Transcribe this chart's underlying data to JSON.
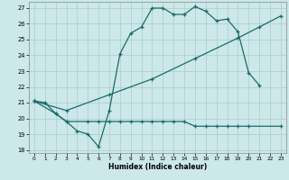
{
  "title": "",
  "xlabel": "Humidex (Indice chaleur)",
  "bg_color": "#cce8e8",
  "grid_color": "#aacccc",
  "line_color": "#1a6b6b",
  "xlim": [
    -0.5,
    23.5
  ],
  "ylim": [
    17.8,
    27.4
  ],
  "yticks": [
    18,
    19,
    20,
    21,
    22,
    23,
    24,
    25,
    26,
    27
  ],
  "xticks": [
    0,
    1,
    2,
    3,
    4,
    5,
    6,
    7,
    8,
    9,
    10,
    11,
    12,
    13,
    14,
    15,
    16,
    17,
    18,
    19,
    20,
    21,
    22,
    23
  ],
  "line1_x": [
    0,
    1,
    2,
    3,
    4,
    5,
    6,
    7,
    8,
    9,
    10,
    11,
    12,
    13,
    14,
    15,
    16,
    17,
    18,
    19,
    20,
    21
  ],
  "line1_y": [
    21.1,
    21.0,
    20.3,
    19.8,
    19.2,
    19.0,
    18.2,
    20.5,
    24.1,
    25.4,
    25.8,
    27.0,
    27.0,
    26.6,
    26.6,
    27.1,
    26.8,
    26.2,
    26.3,
    25.5,
    22.9,
    22.1
  ],
  "line2_x": [
    0,
    2,
    3,
    5,
    6,
    7,
    8,
    9,
    10,
    11,
    12,
    13,
    14,
    15,
    16,
    17,
    18,
    19,
    20,
    23
  ],
  "line2_y": [
    21.1,
    20.3,
    19.8,
    19.8,
    19.8,
    19.8,
    19.8,
    19.8,
    19.8,
    19.8,
    19.8,
    19.8,
    19.8,
    19.5,
    19.5,
    19.5,
    19.5,
    19.5,
    19.5,
    19.5
  ],
  "line3_x": [
    0,
    3,
    7,
    11,
    15,
    19,
    21,
    23
  ],
  "line3_y": [
    21.1,
    20.5,
    21.5,
    22.5,
    23.8,
    25.1,
    25.8,
    26.5
  ]
}
